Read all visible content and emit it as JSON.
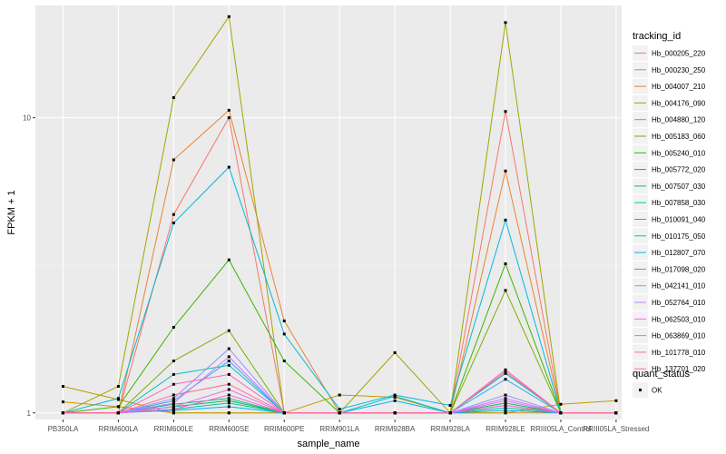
{
  "chart_data": {
    "type": "line",
    "xlabel": "sample_name",
    "ylabel": "FPKM + 1",
    "yscale": "log10",
    "ylim": [
      0.95,
      24
    ],
    "y_ticks": [
      1,
      10
    ],
    "y_tick_labels": [
      "1",
      "10"
    ],
    "categories": [
      "PB350LA",
      "RRIM600LA",
      "RRIM600LE",
      "RRIM600SE",
      "RRIM600PE",
      "RRIM901LA",
      "RRIM928BA",
      "RRIM928LA",
      "RRIM928LE",
      "RRIII05LA_Control",
      "RRIII05LA_Stressed"
    ],
    "legend_title": "tracking_id",
    "series": [
      {
        "name": "Hb_000205_220",
        "color": "#F8766D",
        "values": [
          1.0,
          1.0,
          4.7,
          10.0,
          1.0,
          1.0,
          1.0,
          1.0,
          10.5,
          1.0,
          1.0
        ]
      },
      {
        "name": "Hb_000230_250",
        "color": "#EA8331",
        "values": [
          1.0,
          1.0,
          7.2,
          10.6,
          2.05,
          1.0,
          1.0,
          1.0,
          6.6,
          1.0,
          1.0
        ]
      },
      {
        "name": "Hb_004007_210",
        "color": "#D89000",
        "values": [
          1.09,
          1.05,
          1.0,
          1.0,
          1.0,
          1.0,
          1.0,
          1.0,
          1.0,
          1.0,
          1.0
        ]
      },
      {
        "name": "Hb_004176_090",
        "color": "#C09B00",
        "values": [
          1.23,
          1.11,
          1.0,
          1.0,
          1.0,
          1.15,
          1.13,
          1.0,
          1.0,
          1.07,
          1.1
        ]
      },
      {
        "name": "Hb_004880_120",
        "color": "#A3A500",
        "values": [
          1.0,
          1.23,
          11.7,
          22.0,
          1.0,
          1.0,
          1.6,
          1.0,
          21.0,
          1.0,
          1.0
        ]
      },
      {
        "name": "Hb_005183_060",
        "color": "#7CAE00",
        "values": [
          1.0,
          1.0,
          1.5,
          1.9,
          1.0,
          1.0,
          1.0,
          1.0,
          2.6,
          1.0,
          1.0
        ]
      },
      {
        "name": "Hb_005240_010",
        "color": "#39B600",
        "values": [
          1.0,
          1.05,
          1.95,
          3.3,
          1.5,
          1.0,
          1.0,
          1.0,
          3.2,
          1.0,
          1.0
        ]
      },
      {
        "name": "Hb_005772_020",
        "color": "#00BB4E",
        "values": [
          1.0,
          1.0,
          1.05,
          1.1,
          1.0,
          1.0,
          1.0,
          1.0,
          1.08,
          1.0,
          1.0
        ]
      },
      {
        "name": "Hb_007507_030",
        "color": "#00BF7D",
        "values": [
          1.0,
          1.0,
          1.07,
          1.12,
          1.0,
          1.0,
          1.0,
          1.0,
          1.06,
          1.0,
          1.0
        ]
      },
      {
        "name": "Hb_007858_030",
        "color": "#00C1A3",
        "values": [
          1.0,
          1.0,
          1.03,
          1.08,
          1.0,
          1.0,
          1.0,
          1.0,
          1.04,
          1.0,
          1.0
        ]
      },
      {
        "name": "Hb_010091_040",
        "color": "#00BFC4",
        "values": [
          1.0,
          1.0,
          1.35,
          1.45,
          1.0,
          1.0,
          1.14,
          1.0,
          1.36,
          1.0,
          1.0
        ]
      },
      {
        "name": "Hb_010175_050",
        "color": "#00BAE0",
        "values": [
          1.0,
          1.12,
          4.4,
          6.8,
          1.85,
          1.03,
          1.15,
          1.06,
          4.5,
          1.0,
          1.0
        ]
      },
      {
        "name": "Hb_012807_070",
        "color": "#00B0F6",
        "values": [
          1.0,
          1.0,
          1.02,
          1.05,
          1.0,
          1.0,
          1.1,
          1.0,
          1.02,
          1.0,
          1.0
        ]
      },
      {
        "name": "Hb_017098_020",
        "color": "#35A2FF",
        "values": [
          1.0,
          1.0,
          1.1,
          1.5,
          1.0,
          1.0,
          1.0,
          1.0,
          1.3,
          1.0,
          1.0
        ]
      },
      {
        "name": "Hb_042141_010",
        "color": "#9590FF",
        "values": [
          1.0,
          1.0,
          1.12,
          1.65,
          1.0,
          1.0,
          1.0,
          1.0,
          1.15,
          1.0,
          1.0
        ]
      },
      {
        "name": "Hb_052764_010",
        "color": "#C77CFF",
        "values": [
          1.0,
          1.0,
          1.08,
          1.55,
          1.0,
          1.0,
          1.0,
          1.0,
          1.12,
          1.0,
          1.0
        ]
      },
      {
        "name": "Hb_062503_010",
        "color": "#E76BF3",
        "values": [
          1.0,
          1.0,
          1.05,
          1.2,
          1.0,
          1.0,
          1.0,
          1.0,
          1.1,
          1.0,
          1.0
        ]
      },
      {
        "name": "Hb_063869_010",
        "color": "#FA62DB",
        "values": [
          1.0,
          1.0,
          1.03,
          1.15,
          1.0,
          1.0,
          1.0,
          1.0,
          1.06,
          1.0,
          1.0
        ]
      },
      {
        "name": "Hb_101778_010",
        "color": "#FF62BC",
        "values": [
          1.0,
          1.0,
          1.25,
          1.35,
          1.0,
          1.0,
          1.0,
          1.0,
          1.4,
          1.0,
          1.0
        ]
      },
      {
        "name": "Hb_137701_020",
        "color": "#FF6C91",
        "values": [
          1.0,
          1.0,
          1.15,
          1.25,
          1.0,
          1.0,
          1.0,
          1.0,
          1.38,
          1.0,
          1.0
        ]
      }
    ],
    "legend2_title": "quant_status",
    "legend2_entries": [
      "OK"
    ]
  }
}
